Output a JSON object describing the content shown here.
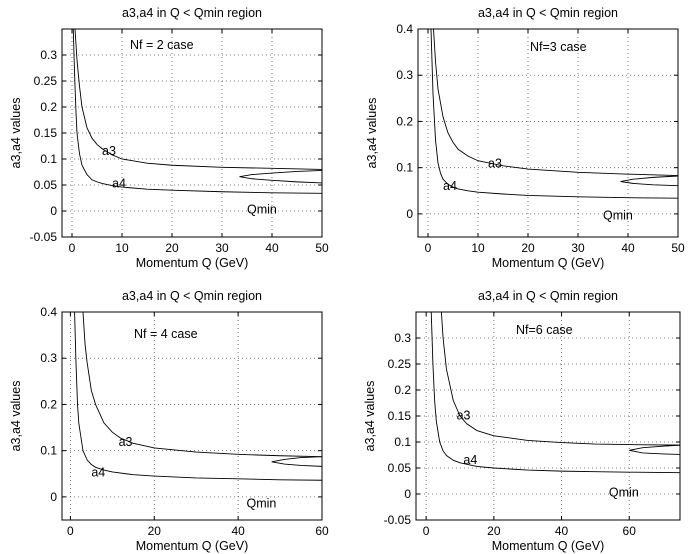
{
  "chart_data": [
    {
      "type": "line",
      "title": "a3,a4 in Q < Qmin region",
      "xlabel": "Momentum Q (GeV)",
      "ylabel": "a3,a4 values",
      "case_label": "Nf = 2 case",
      "xlim": [
        -2,
        50
      ],
      "ylim": [
        -0.05,
        0.35
      ],
      "xticks": [
        0,
        10,
        20,
        30,
        40,
        50
      ],
      "yticks": [
        -0.05,
        0,
        0.05,
        0.1,
        0.15,
        0.2,
        0.25,
        0.3
      ],
      "xtick_labels": [
        "0",
        "10",
        "20",
        "30",
        "40",
        "50"
      ],
      "ytick_labels": [
        "-0.05",
        "0",
        "0.05",
        "0.1",
        "0.15",
        "0.2",
        "0.25",
        "0.3"
      ],
      "grid": true,
      "series": [
        {
          "name": "a3",
          "x": [
            0.6,
            1,
            1.5,
            2,
            3,
            4,
            5,
            6,
            8,
            10,
            15,
            20,
            30,
            40,
            50
          ],
          "y": [
            0.35,
            0.29,
            0.24,
            0.2,
            0.16,
            0.14,
            0.128,
            0.12,
            0.108,
            0.1,
            0.092,
            0.088,
            0.084,
            0.082,
            0.08
          ]
        },
        {
          "name": "a4",
          "x": [
            0.25,
            0.4,
            0.6,
            0.8,
            1,
            1.5,
            2,
            3,
            4,
            5,
            6,
            8,
            10,
            15,
            20,
            30,
            40,
            50
          ],
          "y": [
            0.35,
            0.3,
            0.24,
            0.19,
            0.15,
            0.11,
            0.088,
            0.07,
            0.06,
            0.056,
            0.053,
            0.049,
            0.046,
            0.042,
            0.04,
            0.037,
            0.035,
            0.034
          ]
        },
        {
          "name": "Qmin",
          "x": [
            50,
            45,
            40,
            36,
            33.5,
            36,
            40,
            45,
            50
          ],
          "y": [
            0.078,
            0.076,
            0.073,
            0.07,
            0.066,
            0.062,
            0.059,
            0.056,
            0.054
          ]
        }
      ],
      "annotations": [
        {
          "text": "a3",
          "x": 6,
          "y": 0.108
        },
        {
          "text": "a4",
          "x": 8,
          "y": 0.045
        },
        {
          "text": "Qmin",
          "x": 35,
          "y": -0.005
        }
      ]
    },
    {
      "type": "line",
      "title": "a3,a4 in Q < Qmin region",
      "xlabel": "Momentum Q (GeV)",
      "ylabel": "a3,a4 values",
      "case_label": "Nf=3 case",
      "xlim": [
        -2,
        50
      ],
      "ylim": [
        -0.05,
        0.4
      ],
      "xticks": [
        0,
        10,
        20,
        30,
        40,
        50
      ],
      "yticks": [
        0,
        0.1,
        0.2,
        0.3,
        0.4
      ],
      "xtick_labels": [
        "0",
        "10",
        "20",
        "30",
        "40",
        "50"
      ],
      "ytick_labels": [
        "0",
        "0.1",
        "0.2",
        "0.3",
        "0.4"
      ],
      "grid": true,
      "series": [
        {
          "name": "a3",
          "x": [
            1.1,
            1.5,
            2,
            3,
            4,
            5,
            6,
            8,
            10,
            15,
            20,
            30,
            40,
            50
          ],
          "y": [
            0.4,
            0.33,
            0.27,
            0.21,
            0.175,
            0.155,
            0.14,
            0.125,
            0.115,
            0.104,
            0.097,
            0.09,
            0.086,
            0.083
          ]
        },
        {
          "name": "a4",
          "x": [
            0.6,
            0.8,
            1,
            1.5,
            2,
            2.5,
            3,
            4,
            5,
            6,
            8,
            10,
            15,
            20,
            30,
            40,
            50
          ],
          "y": [
            0.4,
            0.33,
            0.26,
            0.16,
            0.11,
            0.088,
            0.075,
            0.064,
            0.058,
            0.054,
            0.05,
            0.047,
            0.043,
            0.04,
            0.037,
            0.035,
            0.034
          ]
        },
        {
          "name": "Qmin",
          "x": [
            50,
            45,
            41,
            38.5,
            41,
            45,
            50
          ],
          "y": [
            0.082,
            0.079,
            0.075,
            0.07,
            0.066,
            0.063,
            0.061
          ]
        }
      ],
      "annotations": [
        {
          "text": "a3",
          "x": 12,
          "y": 0.1
        },
        {
          "text": "a4",
          "x": 3,
          "y": 0.052
        },
        {
          "text": "Qmin",
          "x": 35,
          "y": -0.012
        }
      ]
    },
    {
      "type": "line",
      "title": "a3,a4 in Q < Qmin region",
      "xlabel": "Momentum Q (GeV)",
      "ylabel": "a3,a4 values",
      "case_label": "Nf = 4 case",
      "xlim": [
        -2,
        60
      ],
      "ylim": [
        -0.05,
        0.4
      ],
      "xticks": [
        0,
        20,
        40,
        60
      ],
      "yticks": [
        0,
        0.1,
        0.2,
        0.3,
        0.4
      ],
      "xtick_labels": [
        "0",
        "20",
        "40",
        "60"
      ],
      "ytick_labels": [
        "0",
        "0.1",
        "0.2",
        "0.3",
        "0.4"
      ],
      "grid": true,
      "series": [
        {
          "name": "a3",
          "x": [
            3,
            3.5,
            4,
            5,
            6,
            8,
            10,
            12,
            15,
            20,
            30,
            40,
            50,
            60
          ],
          "y": [
            0.4,
            0.33,
            0.29,
            0.23,
            0.2,
            0.16,
            0.14,
            0.127,
            0.116,
            0.106,
            0.097,
            0.092,
            0.089,
            0.087
          ]
        },
        {
          "name": "a4",
          "x": [
            1,
            1.3,
            1.7,
            2,
            3,
            4,
            5,
            6,
            8,
            10,
            15,
            20,
            30,
            40,
            50,
            60
          ],
          "y": [
            0.4,
            0.3,
            0.2,
            0.16,
            0.1,
            0.08,
            0.07,
            0.064,
            0.058,
            0.054,
            0.048,
            0.045,
            0.041,
            0.039,
            0.037,
            0.036
          ]
        },
        {
          "name": "Qmin",
          "x": [
            60,
            55,
            51,
            48,
            51,
            55,
            60
          ],
          "y": [
            0.087,
            0.085,
            0.081,
            0.076,
            0.071,
            0.068,
            0.066
          ]
        }
      ],
      "annotations": [
        {
          "text": "a3",
          "x": 11.5,
          "y": 0.11
        },
        {
          "text": "a4",
          "x": 5,
          "y": 0.044
        },
        {
          "text": "Qmin",
          "x": 42,
          "y": -0.023
        }
      ]
    },
    {
      "type": "line",
      "title": "a3,a4 in Q < Qmin region",
      "xlabel": "Momentum Q (GeV)",
      "ylabel": "a3,a4 values",
      "case_label": "Nf=6 case",
      "xlim": [
        -3,
        75
      ],
      "ylim": [
        -0.05,
        0.35
      ],
      "xticks": [
        0,
        20,
        40,
        60
      ],
      "yticks": [
        -0.05,
        0,
        0.05,
        0.1,
        0.15,
        0.2,
        0.25,
        0.3
      ],
      "xtick_labels": [
        "0",
        "20",
        "40",
        "60"
      ],
      "ytick_labels": [
        "-0.05",
        "0",
        "0.05",
        "0.1",
        "0.15",
        "0.2",
        "0.25",
        "0.3"
      ],
      "grid": true,
      "series": [
        {
          "name": "a3",
          "x": [
            4.5,
            5,
            6,
            8,
            10,
            12,
            15,
            20,
            30,
            40,
            50,
            60,
            75
          ],
          "y": [
            0.35,
            0.3,
            0.24,
            0.18,
            0.15,
            0.135,
            0.122,
            0.112,
            0.103,
            0.099,
            0.096,
            0.095,
            0.094
          ]
        },
        {
          "name": "a4",
          "x": [
            1.5,
            2,
            2.5,
            3,
            4,
            5,
            6,
            8,
            10,
            15,
            20,
            30,
            40,
            50,
            60,
            75
          ],
          "y": [
            0.35,
            0.25,
            0.18,
            0.14,
            0.1,
            0.083,
            0.074,
            0.065,
            0.06,
            0.053,
            0.05,
            0.046,
            0.044,
            0.043,
            0.042,
            0.041
          ]
        },
        {
          "name": "Qmin",
          "x": [
            75,
            70,
            64,
            60,
            64,
            70,
            75
          ],
          "y": [
            0.094,
            0.092,
            0.089,
            0.084,
            0.079,
            0.077,
            0.076
          ]
        }
      ],
      "annotations": [
        {
          "text": "a3",
          "x": 9,
          "y": 0.143
        },
        {
          "text": "a4",
          "x": 11,
          "y": 0.058
        },
        {
          "text": "Qmin",
          "x": 54,
          "y": -0.005
        }
      ]
    }
  ]
}
